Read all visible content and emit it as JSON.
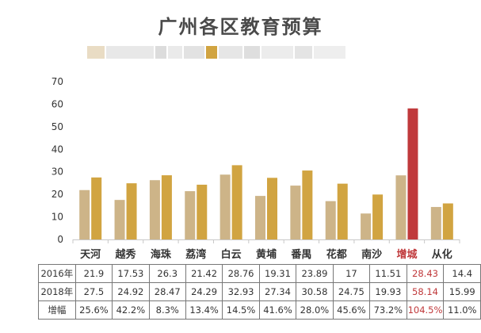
{
  "chart_data": {
    "type": "bar",
    "title": "广州各区教育预算",
    "categories": [
      "天河",
      "越秀",
      "海珠",
      "荔湾",
      "白云",
      "黄埔",
      "番禺",
      "花都",
      "南沙",
      "增城",
      "从化"
    ],
    "highlight_category": "增城",
    "ylim": [
      0,
      70
    ],
    "yticks": [
      0,
      10,
      20,
      30,
      40,
      50,
      60,
      70
    ],
    "grid": false,
    "series": [
      {
        "name": "2016年",
        "color": "#cdb488",
        "values": [
          21.9,
          17.53,
          26.3,
          21.42,
          28.76,
          19.31,
          23.89,
          17,
          11.51,
          28.43,
          14.4
        ]
      },
      {
        "name": "2018年",
        "color": "#d1a441",
        "values": [
          27.5,
          24.92,
          28.47,
          24.29,
          32.93,
          27.34,
          30.58,
          24.75,
          19.93,
          58.14,
          15.99
        ]
      }
    ],
    "highlight_color": "#c0393b",
    "table": {
      "rows": [
        {
          "label": "2016年",
          "values": [
            "21.9",
            "17.53",
            "26.3",
            "21.42",
            "28.76",
            "19.31",
            "23.89",
            "17",
            "11.51",
            "28.43",
            "14.4"
          ]
        },
        {
          "label": "2018年",
          "values": [
            "27.5",
            "24.92",
            "28.47",
            "24.29",
            "32.93",
            "27.34",
            "30.58",
            "24.75",
            "19.93",
            "58.14",
            "15.99"
          ]
        },
        {
          "label": "增幅",
          "values": [
            "25.6%",
            "42.2%",
            "8.3%",
            "13.4%",
            "14.5%",
            "41.6%",
            "28.0%",
            "45.6%",
            "73.2%",
            "104.5%",
            "11.0%"
          ]
        }
      ]
    }
  }
}
